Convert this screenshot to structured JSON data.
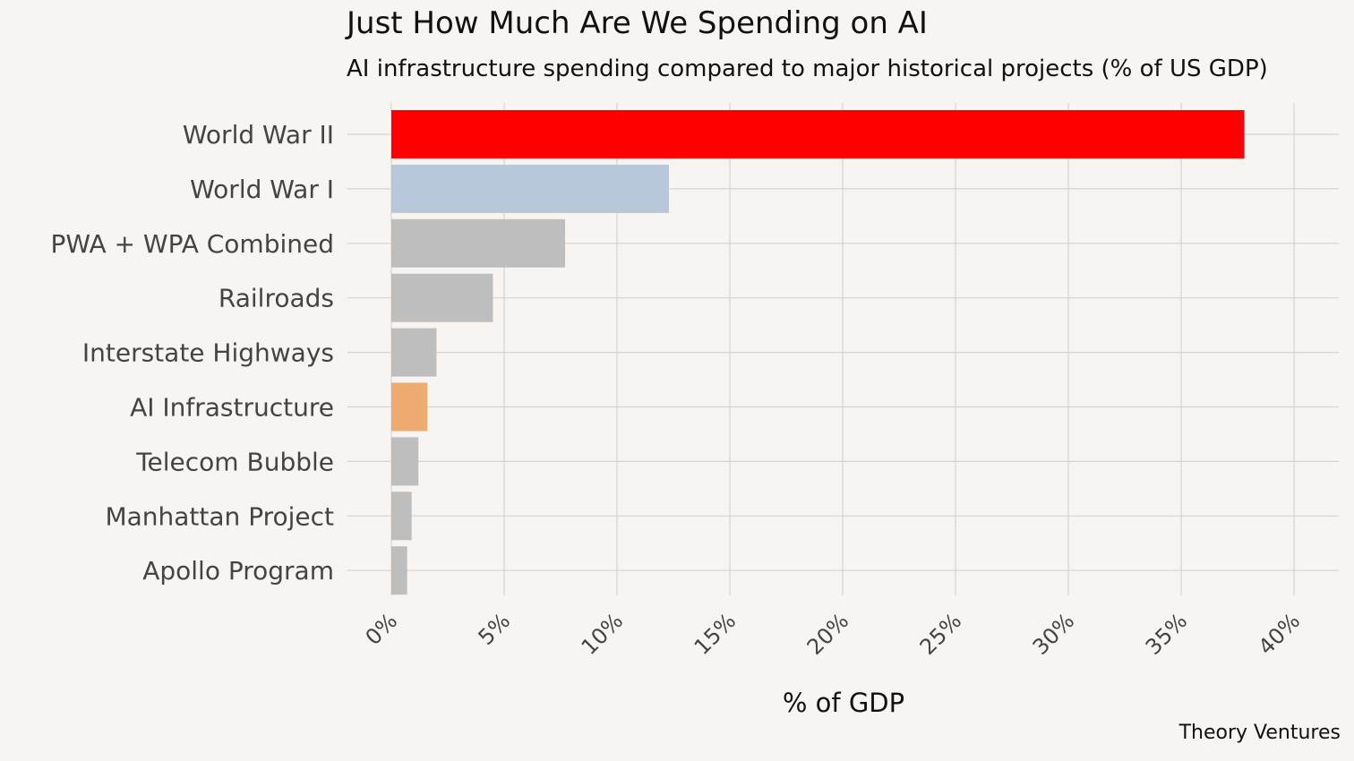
{
  "title": "Just How Much Are We Spending on AI",
  "subtitle": "AI infrastructure spending compared to major historical projects (% of US GDP)",
  "caption": "Theory Ventures",
  "chart_data": {
    "type": "bar",
    "orientation": "horizontal",
    "categories": [
      "World War II",
      "World War I",
      "PWA + WPA Combined",
      "Railroads",
      "Interstate Highways",
      "AI Infrastructure",
      "Telecom Bubble",
      "Manhattan Project",
      "Apollo Program"
    ],
    "values": [
      37.8,
      12.3,
      7.7,
      4.5,
      2.0,
      1.6,
      1.2,
      0.9,
      0.7
    ],
    "colors": [
      "#ff0000",
      "#b8c7da",
      "#bebebe",
      "#bebebe",
      "#bebebe",
      "#eeab72",
      "#bebebe",
      "#bebebe",
      "#bebebe"
    ],
    "xlabel": "% of GDP",
    "ylabel": "",
    "xlim": [
      0,
      42
    ],
    "xticks": [
      0,
      5,
      10,
      15,
      20,
      25,
      30,
      35,
      40
    ],
    "xtick_labels": [
      "0%",
      "5%",
      "10%",
      "15%",
      "20%",
      "25%",
      "30%",
      "35%",
      "40%"
    ],
    "grid": true
  }
}
